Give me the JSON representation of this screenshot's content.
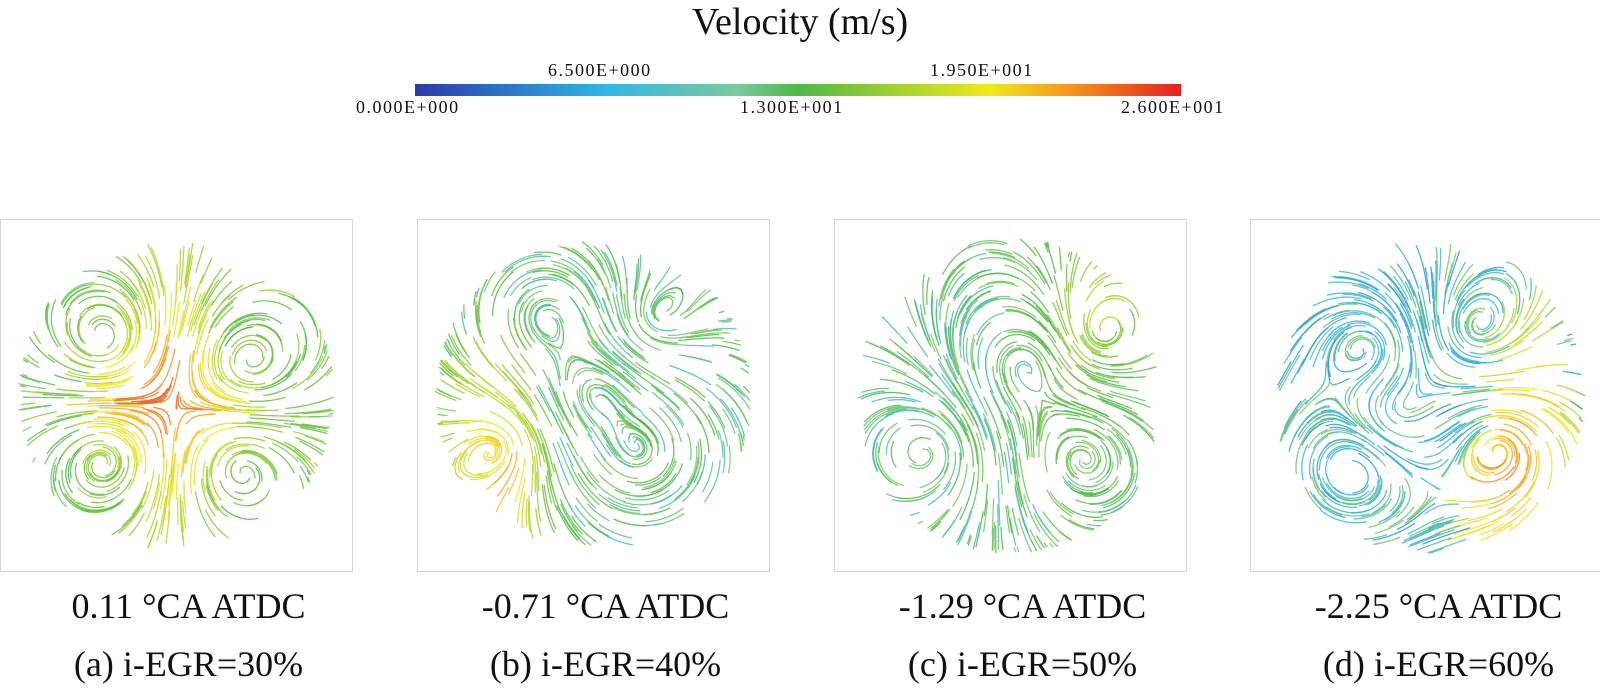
{
  "colorbar": {
    "title": "Velocity (m/s)",
    "unit": "m/s",
    "min": 0,
    "max": 26,
    "ticks_top": [
      "6.500E+000",
      "1.950E+001"
    ],
    "ticks_bottom": [
      "0.000E+000",
      "1.300E+001",
      "2.600E+001"
    ],
    "colors": [
      "#2b3aa8",
      "#2fb7e6",
      "#7cc85a",
      "#4db846",
      "#f2e81c",
      "#f38a1e",
      "#e3201f"
    ]
  },
  "panels": [
    {
      "crank_angle": "0.11 °CA ATDC",
      "label": "(a) i-EGR=30%",
      "egr_percent": 30
    },
    {
      "crank_angle": "-0.71 °CA ATDC",
      "label": "(b) i-EGR=40%",
      "egr_percent": 40
    },
    {
      "crank_angle": "-1.29 °CA ATDC",
      "label": "(c) i-EGR=50%",
      "egr_percent": 50
    },
    {
      "crank_angle": "-2.25 °CA ATDC",
      "label": "(d) i-EGR=60%",
      "egr_percent": 60
    }
  ]
}
